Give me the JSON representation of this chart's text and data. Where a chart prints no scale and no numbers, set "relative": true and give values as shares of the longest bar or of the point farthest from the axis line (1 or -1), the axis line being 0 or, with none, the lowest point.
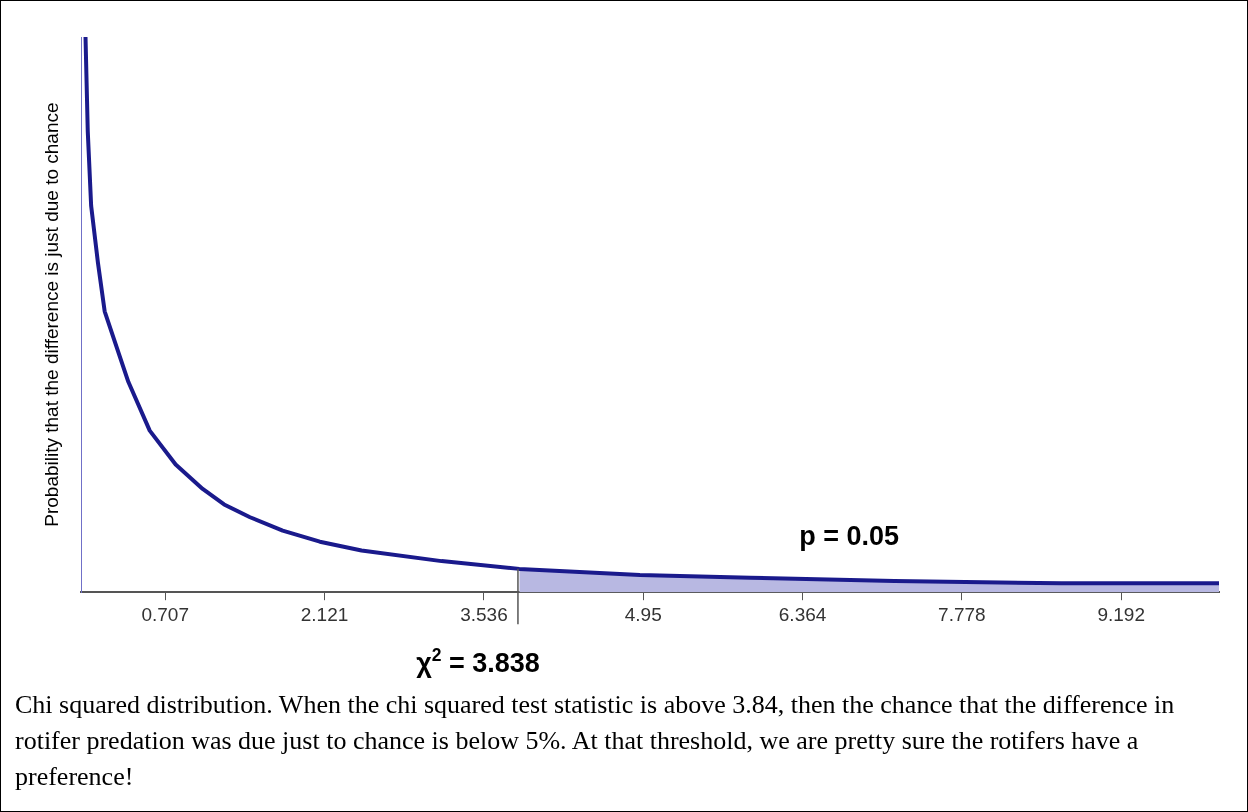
{
  "chart_data": {
    "type": "line",
    "relative": true,
    "ylabel": "Probability that the difference is just due to chance",
    "xlim": [
      -0.04,
      10.06
    ],
    "xticks": [
      0.707,
      2.121,
      3.536,
      4.95,
      6.364,
      7.778,
      9.192
    ],
    "series": [
      {
        "color": "#1a1a8c",
        "x": [
          0,
          0.02,
          0.05,
          0.11,
          0.17,
          0.28,
          0.38,
          0.57,
          0.8,
          1.04,
          1.23,
          1.46,
          1.75,
          2.08,
          2.45,
          3.16,
          3.85,
          4.92,
          5.9,
          7.18,
          8.66,
          10.06
        ],
        "values": [
          1,
          0.83,
          0.696,
          0.594,
          0.506,
          0.439,
          0.379,
          0.291,
          0.23,
          0.186,
          0.158,
          0.135,
          0.111,
          0.091,
          0.075,
          0.056,
          0.042,
          0.031,
          0.026,
          0.02,
          0.016,
          0.016
        ]
      },
      {
        "type": "area",
        "color": "#b8b8e2",
        "x": [
          3.85,
          4.92,
          5.9,
          7.18,
          8.66,
          10.06
        ],
        "values": [
          0.042,
          0.031,
          0.026,
          0.02,
          0.016,
          0.016
        ]
      }
    ],
    "ref_lines": [
      {
        "axis": "x",
        "value": 3.838,
        "label": "χ$^{2}$ = 3.838",
        "color": "#555555"
      }
    ],
    "annotations": [
      "p = 0.05",
      "Chi squared distribution. When the chi squared test statistic is above 3.84, then the chance that the difference in rotifer predation was due just to chance is below 5%. At that threshold, we are pretty sure the rotifers have a preference!"
    ],
    "grid": false,
    "legend": false,
    "marker": "none",
    "line_style": "solid"
  }
}
